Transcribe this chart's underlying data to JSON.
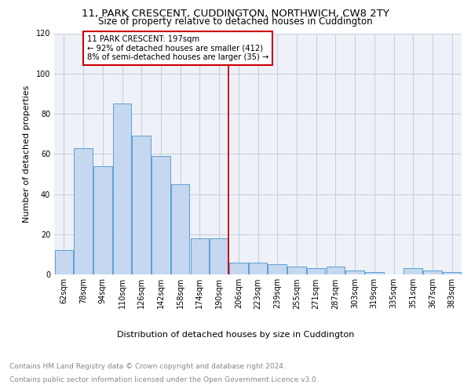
{
  "title": "11, PARK CRESCENT, CUDDINGTON, NORTHWICH, CW8 2TY",
  "subtitle": "Size of property relative to detached houses in Cuddington",
  "xlabel": "Distribution of detached houses by size in Cuddington",
  "ylabel": "Number of detached properties",
  "categories": [
    "62sqm",
    "78sqm",
    "94sqm",
    "110sqm",
    "126sqm",
    "142sqm",
    "158sqm",
    "174sqm",
    "190sqm",
    "206sqm",
    "223sqm",
    "239sqm",
    "255sqm",
    "271sqm",
    "287sqm",
    "303sqm",
    "319sqm",
    "335sqm",
    "351sqm",
    "367sqm",
    "383sqm"
  ],
  "values": [
    12,
    63,
    54,
    85,
    69,
    59,
    45,
    18,
    18,
    6,
    6,
    5,
    4,
    3,
    4,
    2,
    1,
    0,
    3,
    2,
    1
  ],
  "bar_color": "#c5d8f0",
  "bar_edge_color": "#5a9fd4",
  "vline_x": 8.5,
  "vline_color": "#cc0000",
  "annotation_box_text": "11 PARK CRESCENT: 197sqm\n← 92% of detached houses are smaller (412)\n8% of semi-detached houses are larger (35) →",
  "annotation_box_color": "#cc0000",
  "ylim": [
    0,
    120
  ],
  "yticks": [
    0,
    20,
    40,
    60,
    80,
    100,
    120
  ],
  "grid_color": "#c8d0dc",
  "footnote1": "Contains HM Land Registry data © Crown copyright and database right 2024.",
  "footnote2": "Contains public sector information licensed under the Open Government Licence v3.0.",
  "title_fontsize": 9.5,
  "subtitle_fontsize": 8.5,
  "axis_label_fontsize": 8,
  "tick_fontsize": 7,
  "footnote_fontsize": 6.5,
  "background_color": "#eef2f8"
}
